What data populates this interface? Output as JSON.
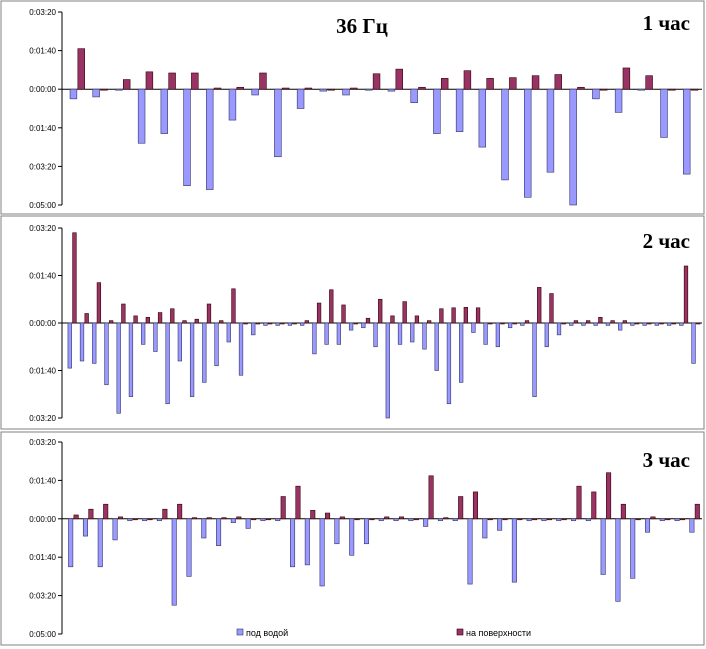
{
  "colors": {
    "under_water": "#9999ff",
    "on_surface": "#993366"
  },
  "legend": [
    {
      "name": "под водой",
      "color": "#9999ff"
    },
    {
      "name": "на поверхности",
      "color": "#993366"
    }
  ],
  "chart_data": [
    {
      "type": "bar",
      "title": "36 Гц",
      "panel_label": "1 час",
      "y_unit": "seconds (displayed as mm:ss)",
      "ylim": [
        -300,
        200
      ],
      "y_ticks": [
        {
          "value": 200,
          "label": "0:03:20"
        },
        {
          "value": 100,
          "label": "0:01:40"
        },
        {
          "value": 0,
          "label": "0:00:00"
        },
        {
          "value": -100,
          "label": "0:01:40"
        },
        {
          "value": -200,
          "label": "0:03:20"
        },
        {
          "value": -300,
          "label": "0:05:00"
        }
      ],
      "series": [
        {
          "name": "под водой",
          "values": [
            -25,
            -20,
            0,
            -140,
            -115,
            -250,
            -260,
            -80,
            -15,
            -175,
            -50,
            -5,
            -15,
            0,
            -5,
            -35,
            -115,
            -110,
            -150,
            -235,
            -280,
            -215,
            -300,
            -25,
            -60,
            0,
            -125,
            -220
          ]
        },
        {
          "name": "на поверхности",
          "values": [
            105,
            0,
            25,
            45,
            42,
            42,
            3,
            5,
            42,
            3,
            3,
            0,
            3,
            40,
            52,
            5,
            28,
            48,
            28,
            30,
            35,
            38,
            5,
            0,
            55,
            35,
            0,
            0
          ]
        }
      ]
    },
    {
      "type": "bar",
      "panel_label": "2 час",
      "y_unit": "seconds (displayed as mm:ss)",
      "ylim": [
        -200,
        200
      ],
      "y_ticks": [
        {
          "value": 200,
          "label": "0:03:20"
        },
        {
          "value": 100,
          "label": "0:01:40"
        },
        {
          "value": 0,
          "label": "0:00:00"
        },
        {
          "value": -100,
          "label": "0:01:40"
        },
        {
          "value": -200,
          "label": "0:03:20"
        }
      ],
      "series": [
        {
          "name": "под водой",
          "values": [
            -95,
            -80,
            -85,
            -130,
            -190,
            -155,
            -45,
            -60,
            -170,
            -80,
            -155,
            -125,
            -90,
            -40,
            -110,
            -25,
            -5,
            -5,
            -5,
            -5,
            -65,
            -45,
            -45,
            -15,
            -10,
            -50,
            -200,
            -45,
            -40,
            -55,
            -100,
            -170,
            -125,
            -20,
            -45,
            -50,
            -10,
            -5,
            -155,
            -50,
            -25,
            -5,
            -5,
            -5,
            -5,
            -15,
            -5,
            -5,
            -5,
            -5,
            -5,
            -85
          ]
        },
        {
          "name": "на поверхности",
          "values": [
            190,
            20,
            85,
            5,
            40,
            15,
            12,
            22,
            30,
            5,
            8,
            40,
            5,
            72,
            0,
            0,
            0,
            0,
            0,
            5,
            42,
            70,
            38,
            0,
            10,
            50,
            15,
            45,
            15,
            5,
            30,
            32,
            33,
            32,
            0,
            0,
            0,
            5,
            75,
            62,
            0,
            5,
            5,
            12,
            5,
            5,
            0,
            0,
            0,
            0,
            120,
            0
          ]
        }
      ]
    },
    {
      "type": "bar",
      "panel_label": "3 час",
      "y_unit": "seconds (displayed as mm:ss)",
      "ylim": [
        -300,
        200
      ],
      "y_ticks": [
        {
          "value": 200,
          "label": "0:03:20"
        },
        {
          "value": 100,
          "label": "0:01:40"
        },
        {
          "value": 0,
          "label": "0:00:00"
        },
        {
          "value": -100,
          "label": "0:01:40"
        },
        {
          "value": -200,
          "label": "0:03:20"
        },
        {
          "value": -300,
          "label": "0:05:00"
        }
      ],
      "series": [
        {
          "name": "под водой",
          "values": [
            -125,
            -45,
            -125,
            -55,
            -5,
            -5,
            -5,
            -225,
            -150,
            -50,
            -70,
            -10,
            -25,
            -5,
            -5,
            -125,
            -120,
            -175,
            -65,
            -95,
            -65,
            -5,
            -5,
            -5,
            -20,
            -5,
            -5,
            -170,
            -50,
            -30,
            -165,
            -5,
            -5,
            -5,
            -5,
            -5,
            -145,
            -215,
            -155,
            -35,
            -5,
            -5,
            -35
          ]
        },
        {
          "name": "на поверхности",
          "values": [
            10,
            25,
            38,
            5,
            0,
            0,
            25,
            38,
            3,
            3,
            3,
            5,
            0,
            0,
            58,
            85,
            22,
            15,
            5,
            0,
            0,
            5,
            5,
            0,
            112,
            3,
            58,
            70,
            0,
            0,
            0,
            0,
            0,
            0,
            85,
            70,
            120,
            38,
            0,
            5,
            0,
            0,
            38
          ]
        }
      ]
    }
  ]
}
